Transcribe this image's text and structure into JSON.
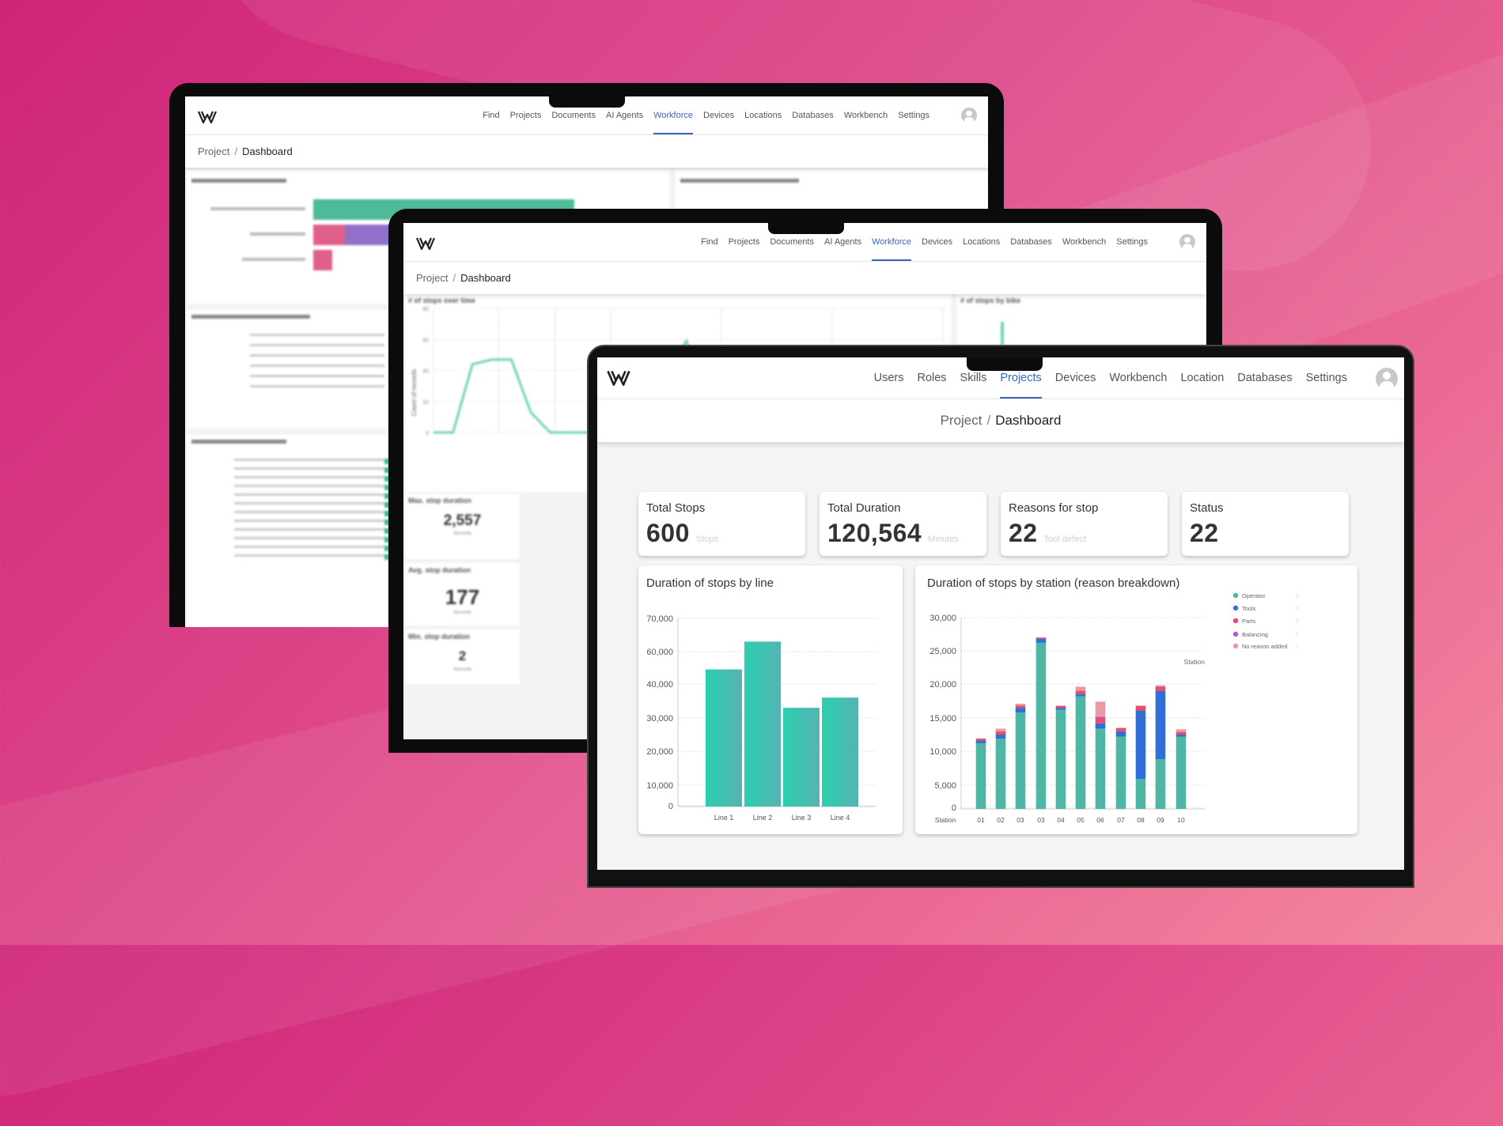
{
  "back_laptop": {
    "nav": {
      "items": [
        "Find",
        "Projects",
        "Documents",
        "AI Agents",
        "Workforce",
        "Devices",
        "Locations",
        "Databases",
        "Workbench",
        "Settings"
      ],
      "active": "Workforce"
    },
    "breadcrumb": {
      "parent": "Project",
      "separator": "/",
      "current": "Dashboard"
    }
  },
  "middle_laptop": {
    "nav": {
      "items": [
        "Find",
        "Projects",
        "Documents",
        "AI Agents",
        "Workforce",
        "Devices",
        "Locations",
        "Databases",
        "Workbench",
        "Settings"
      ],
      "active": "Workforce"
    },
    "breadcrumb": {
      "parent": "Project",
      "separator": "/",
      "current": "Dashboard"
    },
    "line_widget_title": "# of stops over time",
    "side_widget_title": "# of stops by bike",
    "y_label": "Count of records",
    "stats": [
      {
        "title": "Max. stop duration",
        "value": "2,557",
        "unit": "Seconds"
      },
      {
        "title": "Avg. stop duration",
        "value": "177",
        "unit": "Seconds"
      },
      {
        "title": "Min. stop duration",
        "value": "2",
        "unit": "Seconds"
      }
    ]
  },
  "front_laptop": {
    "nav": {
      "items": [
        "Users",
        "Roles",
        "Skills",
        "Projects",
        "Devices",
        "Workbench",
        "Location",
        "Databases",
        "Settings"
      ],
      "active": "Projects"
    },
    "breadcrumb": {
      "parent": "Project",
      "separator": "/",
      "current": "Dashboard"
    },
    "kpis": [
      {
        "title": "Total Stops",
        "value": "600",
        "unit": "Stops"
      },
      {
        "title": "Total Duration",
        "value": "120,564",
        "unit": "Minutes"
      },
      {
        "title": "Reasons for stop",
        "value": "22",
        "unit": "Tool defect"
      },
      {
        "title": "Status",
        "value": "22",
        "unit": ""
      }
    ]
  },
  "colors": {
    "active_nav": "#3b63c9",
    "bar_teal": "#2ccfb0",
    "operator": "#4db6a4",
    "tools": "#2f6fd6",
    "parts": "#ec4b6a",
    "balancing": "#b05ad8",
    "no_reason": "#eb9aa5",
    "line": "#6fd3b0"
  },
  "chart_data": [
    {
      "type": "bar",
      "title": "Duration of stops by line",
      "categories": [
        "Line 1",
        "Line 2",
        "Line 3",
        "Line 4"
      ],
      "values": [
        49000,
        63000,
        33000,
        36000
      ],
      "y_ticks": [
        "0",
        "10,000",
        "20,000",
        "30,000",
        "40,000",
        "60,000",
        "70,000"
      ],
      "y_tick_values": [
        0,
        10000,
        20000,
        30000,
        40000,
        60000,
        70000
      ],
      "grid": true
    },
    {
      "type": "bar",
      "stacked": true,
      "title": "Duration of stops by station (reason breakdown)",
      "xlabel": "Station",
      "annotation": "Station",
      "categories": [
        "01",
        "02",
        "03",
        "03",
        "04",
        "05",
        "06",
        "07",
        "08",
        "09",
        "10"
      ],
      "y_ticks": [
        "0",
        "5,000",
        "10,000",
        "15,000",
        "20,000",
        "25,000",
        "30,000"
      ],
      "y_tick_values": [
        0,
        5000,
        10000,
        15000,
        20000,
        25000,
        30000
      ],
      "legend_position": "right",
      "grid": true,
      "series": [
        {
          "name": "Operator",
          "values": [
            11200,
            11900,
            15800,
            26200,
            16200,
            18200,
            13400,
            12200,
            5900,
            8800,
            12200
          ]
        },
        {
          "name": "Tools",
          "values": [
            400,
            600,
            700,
            600,
            300,
            300,
            800,
            800,
            10200,
            10200,
            300
          ]
        },
        {
          "name": "Parts",
          "values": [
            300,
            500,
            300,
            200,
            300,
            500,
            800,
            500,
            700,
            600,
            400
          ]
        },
        {
          "name": "Balancing",
          "values": [
            0,
            0,
            0,
            0,
            0,
            0,
            200,
            0,
            0,
            0,
            0
          ]
        },
        {
          "name": "No reason added",
          "values": [
            0,
            400,
            300,
            0,
            0,
            600,
            2200,
            0,
            0,
            200,
            400
          ]
        }
      ]
    },
    {
      "type": "line",
      "title": "# of stops over time",
      "ylabel": "Count of records",
      "y_ticks": [
        "0",
        "20",
        "40",
        "60",
        "80"
      ],
      "ylim": [
        0,
        80
      ],
      "values": [
        0,
        0,
        44,
        47,
        47,
        13,
        0,
        0,
        0,
        0,
        0,
        38,
        41,
        59,
        19,
        0,
        0,
        0,
        0,
        0,
        0,
        0
      ]
    }
  ]
}
